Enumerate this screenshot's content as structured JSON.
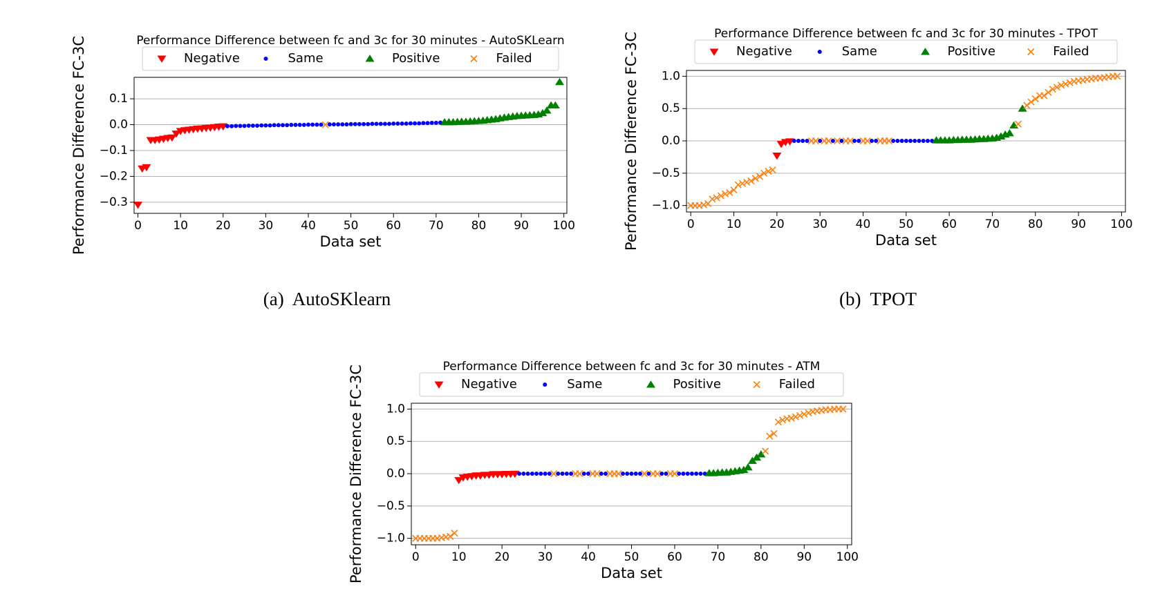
{
  "chart_data": [
    {
      "type": "scatter",
      "title": "Performance Difference between fc and 3c for 30 minutes - AutoSKLearn",
      "xlabel": "Data set",
      "ylabel": "Performance Difference FC-3C",
      "caption": "(a)  AutoSKlearn",
      "xlim": [
        -0.9,
        100.7
      ],
      "ylim": [
        -0.343,
        0.183
      ],
      "xticks": [
        0,
        10,
        20,
        30,
        40,
        50,
        60,
        70,
        80,
        90,
        100
      ],
      "yticks": [
        {
          "value": -0.3,
          "label": "−0.3"
        },
        {
          "value": -0.2,
          "label": "−0.2"
        },
        {
          "value": -0.1,
          "label": "−0.1"
        },
        {
          "value": 0,
          "label": "0.0"
        },
        {
          "value": 0.1,
          "label": "0.1"
        }
      ],
      "grid": true,
      "legend": "top",
      "series": [
        {
          "name": "Negative",
          "color": "#ff0000",
          "marker": "v",
          "x": [
            0,
            1,
            2,
            3,
            4,
            5,
            6,
            7,
            8,
            9,
            10,
            11,
            12,
            13,
            14,
            15,
            16,
            17,
            18,
            19,
            20
          ],
          "values": [
            -0.31,
            -0.17,
            -0.165,
            -0.06,
            -0.06,
            -0.058,
            -0.055,
            -0.052,
            -0.05,
            -0.035,
            -0.025,
            -0.022,
            -0.02,
            -0.018,
            -0.016,
            -0.015,
            -0.013,
            -0.012,
            -0.01,
            -0.008,
            -0.007
          ]
        },
        {
          "name": "Same",
          "color": "#0000ff",
          "marker": "o",
          "x": [
            21,
            22,
            23,
            24,
            25,
            26,
            27,
            28,
            29,
            30,
            31,
            32,
            33,
            34,
            35,
            36,
            37,
            38,
            39,
            40,
            41,
            42,
            43,
            45,
            46,
            47,
            48,
            49,
            50,
            51,
            52,
            53,
            54,
            55,
            56,
            57,
            58,
            59,
            60,
            61,
            62,
            63,
            64,
            65,
            66,
            67,
            68,
            69,
            70,
            71
          ],
          "values": [
            -0.006,
            -0.006,
            -0.005,
            -0.005,
            -0.005,
            -0.004,
            -0.004,
            -0.004,
            -0.003,
            -0.003,
            -0.003,
            -0.002,
            -0.002,
            -0.002,
            -0.002,
            -0.001,
            -0.001,
            -0.001,
            -0.001,
            0,
            0,
            0,
            0,
            0.001,
            0.001,
            0.001,
            0.001,
            0.001,
            0.002,
            0.002,
            0.002,
            0.002,
            0.002,
            0.003,
            0.003,
            0.003,
            0.003,
            0.003,
            0.004,
            0.004,
            0.004,
            0.004,
            0.005,
            0.005,
            0.005,
            0.006,
            0.006,
            0.007,
            0.007,
            0.008
          ]
        },
        {
          "name": "Positive",
          "color": "#008000",
          "marker": "^",
          "x": [
            72,
            73,
            74,
            75,
            76,
            77,
            78,
            79,
            80,
            81,
            82,
            83,
            84,
            85,
            86,
            87,
            88,
            89,
            90,
            91,
            92,
            93,
            94,
            95,
            96,
            97,
            98,
            99
          ],
          "values": [
            0.01,
            0.01,
            0.01,
            0.011,
            0.012,
            0.012,
            0.013,
            0.014,
            0.015,
            0.016,
            0.018,
            0.02,
            0.022,
            0.025,
            0.028,
            0.03,
            0.032,
            0.034,
            0.035,
            0.036,
            0.037,
            0.038,
            0.04,
            0.045,
            0.055,
            0.075,
            0.075,
            0.165
          ]
        },
        {
          "name": "Failed",
          "color": "#ff7f0e",
          "marker": "x",
          "x": [
            44
          ],
          "values": [
            0
          ]
        }
      ]
    },
    {
      "type": "scatter",
      "title": "Performance Difference between fc and 3c for 30 minutes - TPOT",
      "xlabel": "Data set",
      "ylabel": "Performance Difference FC-3C",
      "caption": "(b)  TPOT",
      "xlim": [
        -1,
        100.9
      ],
      "ylim": [
        -1.1,
        1.09
      ],
      "xticks": [
        0,
        10,
        20,
        30,
        40,
        50,
        60,
        70,
        80,
        90,
        100
      ],
      "yticks": [
        {
          "value": -1,
          "label": "−1.0"
        },
        {
          "value": -0.5,
          "label": "−0.5"
        },
        {
          "value": 0,
          "label": "0.0"
        },
        {
          "value": 0.5,
          "label": "0.5"
        },
        {
          "value": 1,
          "label": "1.0"
        }
      ],
      "grid": true,
      "legend": "top",
      "series": [
        {
          "name": "Negative",
          "color": "#ff0000",
          "marker": "v",
          "x": [
            20,
            21,
            22,
            23
          ],
          "values": [
            -0.23,
            -0.05,
            -0.02,
            -0.01
          ]
        },
        {
          "name": "Same",
          "color": "#0000ff",
          "marker": "o",
          "x": [
            24,
            25,
            26,
            27,
            30,
            33,
            35,
            38,
            39,
            42,
            43,
            47,
            48,
            49,
            50,
            51,
            52,
            53,
            54,
            55,
            56
          ],
          "values": [
            0,
            0,
            0,
            0,
            0,
            0,
            0,
            0,
            0,
            0,
            0,
            0,
            0,
            0,
            0,
            0,
            0,
            0,
            0,
            0,
            0
          ]
        },
        {
          "name": "Positive",
          "color": "#008000",
          "marker": "^",
          "x": [
            57,
            58,
            59,
            60,
            61,
            62,
            63,
            64,
            65,
            66,
            67,
            68,
            69,
            70,
            71,
            72,
            73,
            74,
            75,
            77
          ],
          "values": [
            0.01,
            0.01,
            0.01,
            0.01,
            0.015,
            0.015,
            0.02,
            0.02,
            0.02,
            0.025,
            0.03,
            0.03,
            0.035,
            0.04,
            0.05,
            0.07,
            0.1,
            0.12,
            0.24,
            0.5
          ]
        },
        {
          "name": "Failed",
          "color": "#ff7f0e",
          "marker": "x",
          "x": [
            0,
            1,
            2,
            3,
            4,
            5,
            6,
            7,
            8,
            9,
            10,
            11,
            12,
            13,
            14,
            15,
            16,
            17,
            18,
            19,
            28,
            29,
            31,
            32,
            34,
            36,
            37,
            40,
            41,
            44,
            45,
            46,
            76,
            78,
            79,
            80,
            81,
            82,
            83,
            84,
            85,
            86,
            87,
            88,
            89,
            90,
            91,
            92,
            93,
            94,
            95,
            96,
            97,
            98,
            99
          ],
          "values": [
            -1,
            -1,
            -1,
            -0.99,
            -0.97,
            -0.9,
            -0.88,
            -0.85,
            -0.82,
            -0.8,
            -0.76,
            -0.68,
            -0.66,
            -0.64,
            -0.62,
            -0.58,
            -0.55,
            -0.5,
            -0.47,
            -0.45,
            0,
            0,
            0,
            0,
            0,
            0,
            0,
            0,
            0,
            0,
            0,
            0,
            0.26,
            0.55,
            0.6,
            0.65,
            0.7,
            0.7,
            0.75,
            0.8,
            0.83,
            0.86,
            0.88,
            0.9,
            0.92,
            0.93,
            0.94,
            0.95,
            0.96,
            0.97,
            0.97,
            0.98,
            0.99,
            1,
            1
          ]
        }
      ]
    },
    {
      "type": "scatter",
      "title": "Performance Difference between fc and 3c for 30 minutes - ATM",
      "xlabel": "Data set",
      "ylabel": "Performance Difference FC-3C",
      "xlim": [
        -1,
        101
      ],
      "ylim": [
        -1.1,
        1.09
      ],
      "xticks": [
        0,
        10,
        20,
        30,
        40,
        50,
        60,
        70,
        80,
        90,
        100
      ],
      "yticks": [
        {
          "value": -1,
          "label": "−1.0"
        },
        {
          "value": -0.5,
          "label": "−0.5"
        },
        {
          "value": 0,
          "label": "0.0"
        },
        {
          "value": 0.5,
          "label": "0.5"
        },
        {
          "value": 1,
          "label": "1.0"
        }
      ],
      "grid": true,
      "legend": "top",
      "series": [
        {
          "name": "Negative",
          "color": "#ff0000",
          "marker": "v",
          "x": [
            10,
            11,
            12,
            13,
            14,
            15,
            16,
            17,
            18,
            19,
            20,
            21,
            22,
            23
          ],
          "values": [
            -0.1,
            -0.06,
            -0.05,
            -0.04,
            -0.03,
            -0.03,
            -0.02,
            -0.02,
            -0.01,
            -0.01,
            -0.01,
            -0.005,
            -0.005,
            -0.003
          ]
        },
        {
          "name": "Same",
          "color": "#0000ff",
          "marker": "o",
          "x": [
            24,
            25,
            26,
            27,
            28,
            29,
            30,
            31,
            33,
            34,
            35,
            36,
            39,
            40,
            43,
            44,
            48,
            49,
            50,
            51,
            52,
            54,
            57,
            58,
            61,
            62,
            63,
            64,
            65,
            66,
            67
          ],
          "values": [
            0,
            0,
            0,
            0,
            0,
            0,
            0,
            0,
            0,
            0,
            0,
            0,
            0,
            0,
            0,
            0,
            0,
            0,
            0,
            0,
            0,
            0,
            0,
            0,
            0,
            0,
            0,
            0,
            0,
            0,
            0
          ]
        },
        {
          "name": "Positive",
          "color": "#008000",
          "marker": "^",
          "x": [
            68,
            69,
            70,
            71,
            72,
            73,
            74,
            75,
            76,
            77,
            78,
            79,
            80
          ],
          "values": [
            0.01,
            0.01,
            0.015,
            0.02,
            0.02,
            0.03,
            0.04,
            0.05,
            0.06,
            0.1,
            0.2,
            0.25,
            0.3
          ]
        },
        {
          "name": "Failed",
          "color": "#ff7f0e",
          "marker": "x",
          "x": [
            0,
            1,
            2,
            3,
            4,
            5,
            6,
            7,
            8,
            9,
            32,
            37,
            38,
            41,
            42,
            45,
            46,
            47,
            53,
            55,
            56,
            59,
            60,
            81,
            82,
            83,
            84,
            85,
            86,
            87,
            88,
            89,
            90,
            91,
            92,
            93,
            94,
            95,
            96,
            97,
            98,
            99
          ],
          "values": [
            -1,
            -1,
            -1,
            -1,
            -1,
            -1,
            -0.99,
            -0.98,
            -0.97,
            -0.92,
            0,
            0,
            0,
            0,
            0,
            0,
            0,
            0,
            0,
            0,
            0,
            0,
            0,
            0.35,
            0.58,
            0.62,
            0.8,
            0.83,
            0.85,
            0.86,
            0.88,
            0.9,
            0.92,
            0.94,
            0.96,
            0.97,
            0.98,
            0.99,
            0.99,
            1,
            1,
            1
          ]
        }
      ]
    }
  ]
}
